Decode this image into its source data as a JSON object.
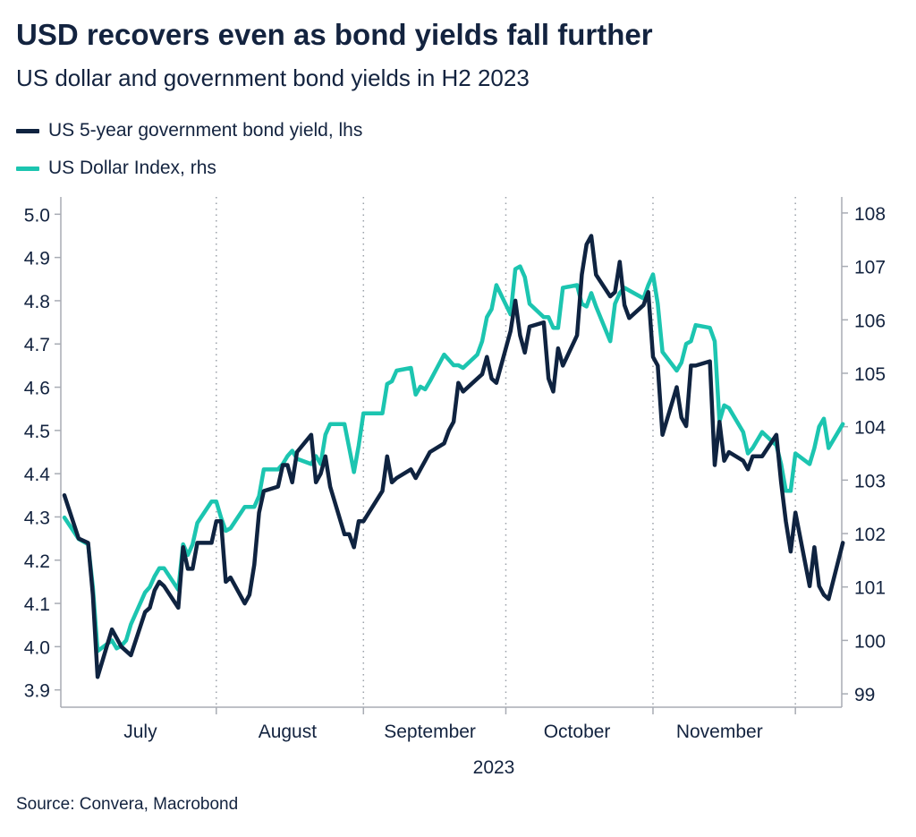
{
  "header": {
    "title": "USD recovers even as bond yields fall further",
    "subtitle": "US dollar and government bond yields in H2 2023"
  },
  "source": "Source: Convera, Macrobond",
  "colors": {
    "yield": "#0f2340",
    "dxy": "#1cc5b0",
    "axis": "#a8acb4",
    "grid": "#9aa0a8"
  },
  "chart_data": {
    "type": "line",
    "title": "USD recovers even as bond yields fall further",
    "subtitle": "US dollar and government bond yields in H2 2023",
    "x_axis": {
      "type": "date",
      "range": [
        "2023-06-30",
        "2023-12-07"
      ],
      "month_labels": [
        {
          "label": "July",
          "date": "2023-07-16"
        },
        {
          "label": "August",
          "date": "2023-08-16"
        },
        {
          "label": "September",
          "date": "2023-09-15"
        },
        {
          "label": "October",
          "date": "2023-10-16"
        },
        {
          "label": "November",
          "date": "2023-11-15"
        }
      ],
      "month_dividers": [
        "2023-08-01",
        "2023-09-01",
        "2023-10-01",
        "2023-11-01",
        "2023-12-01"
      ],
      "year_label": "2023",
      "grid": "dotted vertical at month boundaries"
    },
    "y_left": {
      "range": [
        3.86,
        5.04
      ],
      "ticks": [
        "3.9",
        "4.0",
        "4.1",
        "4.2",
        "4.3",
        "4.4",
        "4.5",
        "4.6",
        "4.7",
        "4.8",
        "4.9",
        "5.0"
      ]
    },
    "y_right": {
      "range": [
        98.75,
        108.3
      ],
      "ticks": [
        "99",
        "100",
        "101",
        "102",
        "103",
        "104",
        "105",
        "106",
        "107",
        "108"
      ]
    },
    "legend_placement": "top-left",
    "series": [
      {
        "name": "US 5-year government bond yield, lhs",
        "axis": "left",
        "color": "#0f2340",
        "points": [
          [
            "2023-06-30",
            4.35
          ],
          [
            "2023-07-03",
            4.25
          ],
          [
            "2023-07-05",
            4.24
          ],
          [
            "2023-07-06",
            4.12
          ],
          [
            "2023-07-07",
            3.93
          ],
          [
            "2023-07-10",
            4.04
          ],
          [
            "2023-07-11",
            4.02
          ],
          [
            "2023-07-12",
            4.0
          ],
          [
            "2023-07-13",
            3.99
          ],
          [
            "2023-07-14",
            3.98
          ],
          [
            "2023-07-17",
            4.08
          ],
          [
            "2023-07-18",
            4.09
          ],
          [
            "2023-07-19",
            4.13
          ],
          [
            "2023-07-20",
            4.15
          ],
          [
            "2023-07-21",
            4.14
          ],
          [
            "2023-07-24",
            4.09
          ],
          [
            "2023-07-25",
            4.23
          ],
          [
            "2023-07-26",
            4.18
          ],
          [
            "2023-07-27",
            4.18
          ],
          [
            "2023-07-28",
            4.24
          ],
          [
            "2023-07-31",
            4.24
          ],
          [
            "2023-08-01",
            4.29
          ],
          [
            "2023-08-02",
            4.29
          ],
          [
            "2023-08-03",
            4.15
          ],
          [
            "2023-08-04",
            4.16
          ],
          [
            "2023-08-07",
            4.1
          ],
          [
            "2023-08-08",
            4.12
          ],
          [
            "2023-08-09",
            4.19
          ],
          [
            "2023-08-10",
            4.31
          ],
          [
            "2023-08-11",
            4.36
          ],
          [
            "2023-08-14",
            4.37
          ],
          [
            "2023-08-15",
            4.42
          ],
          [
            "2023-08-16",
            4.42
          ],
          [
            "2023-08-17",
            4.38
          ],
          [
            "2023-08-18",
            4.45
          ],
          [
            "2023-08-21",
            4.49
          ],
          [
            "2023-08-22",
            4.38
          ],
          [
            "2023-08-23",
            4.4
          ],
          [
            "2023-08-24",
            4.44
          ],
          [
            "2023-08-25",
            4.37
          ],
          [
            "2023-08-28",
            4.26
          ],
          [
            "2023-08-29",
            4.26
          ],
          [
            "2023-08-30",
            4.23
          ],
          [
            "2023-08-31",
            4.29
          ],
          [
            "2023-09-01",
            4.29
          ],
          [
            "2023-09-05",
            4.36
          ],
          [
            "2023-09-06",
            4.44
          ],
          [
            "2023-09-07",
            4.38
          ],
          [
            "2023-09-08",
            4.39
          ],
          [
            "2023-09-11",
            4.41
          ],
          [
            "2023-09-12",
            4.39
          ],
          [
            "2023-09-13",
            4.41
          ],
          [
            "2023-09-14",
            4.43
          ],
          [
            "2023-09-15",
            4.45
          ],
          [
            "2023-09-18",
            4.47
          ],
          [
            "2023-09-19",
            4.5
          ],
          [
            "2023-09-20",
            4.52
          ],
          [
            "2023-09-21",
            4.61
          ],
          [
            "2023-09-22",
            4.59
          ],
          [
            "2023-09-25",
            4.62
          ],
          [
            "2023-09-26",
            4.63
          ],
          [
            "2023-09-27",
            4.67
          ],
          [
            "2023-09-28",
            4.62
          ],
          [
            "2023-09-29",
            4.61
          ],
          [
            "2023-10-02",
            4.73
          ],
          [
            "2023-10-03",
            4.8
          ],
          [
            "2023-10-04",
            4.72
          ],
          [
            "2023-10-05",
            4.68
          ],
          [
            "2023-10-06",
            4.74
          ],
          [
            "2023-10-09",
            4.75
          ],
          [
            "2023-10-10",
            4.62
          ],
          [
            "2023-10-11",
            4.59
          ],
          [
            "2023-10-12",
            4.69
          ],
          [
            "2023-10-13",
            4.65
          ],
          [
            "2023-10-16",
            4.72
          ],
          [
            "2023-10-17",
            4.86
          ],
          [
            "2023-10-18",
            4.93
          ],
          [
            "2023-10-19",
            4.95
          ],
          [
            "2023-10-20",
            4.86
          ],
          [
            "2023-10-23",
            4.81
          ],
          [
            "2023-10-24",
            4.82
          ],
          [
            "2023-10-25",
            4.89
          ],
          [
            "2023-10-26",
            4.79
          ],
          [
            "2023-10-27",
            4.76
          ],
          [
            "2023-10-30",
            4.79
          ],
          [
            "2023-10-31",
            4.82
          ],
          [
            "2023-11-01",
            4.67
          ],
          [
            "2023-11-02",
            4.65
          ],
          [
            "2023-11-03",
            4.49
          ],
          [
            "2023-11-06",
            4.6
          ],
          [
            "2023-11-07",
            4.53
          ],
          [
            "2023-11-08",
            4.51
          ],
          [
            "2023-11-09",
            4.65
          ],
          [
            "2023-11-10",
            4.65
          ],
          [
            "2023-11-13",
            4.66
          ],
          [
            "2023-11-14",
            4.42
          ],
          [
            "2023-11-15",
            4.52
          ],
          [
            "2023-11-16",
            4.43
          ],
          [
            "2023-11-17",
            4.45
          ],
          [
            "2023-11-20",
            4.43
          ],
          [
            "2023-11-21",
            4.41
          ],
          [
            "2023-11-22",
            4.44
          ],
          [
            "2023-11-24",
            4.44
          ],
          [
            "2023-11-27",
            4.49
          ],
          [
            "2023-11-28",
            4.38
          ],
          [
            "2023-11-29",
            4.29
          ],
          [
            "2023-11-30",
            4.22
          ],
          [
            "2023-12-01",
            4.31
          ],
          [
            "2023-12-04",
            4.14
          ],
          [
            "2023-12-05",
            4.23
          ],
          [
            "2023-12-06",
            4.14
          ],
          [
            "2023-12-07",
            4.12
          ],
          [
            "2023-12-08",
            4.11
          ],
          [
            "2023-12-11",
            4.24
          ]
        ]
      },
      {
        "name": "US Dollar Index, rhs",
        "axis": "right",
        "color": "#1cc5b0",
        "points": [
          [
            "2023-06-30",
            102.3
          ],
          [
            "2023-07-03",
            101.9
          ],
          [
            "2023-07-05",
            101.8
          ],
          [
            "2023-07-06",
            101.0
          ],
          [
            "2023-07-07",
            99.8
          ],
          [
            "2023-07-10",
            100.0
          ],
          [
            "2023-07-11",
            99.85
          ],
          [
            "2023-07-12",
            99.9
          ],
          [
            "2023-07-13",
            100.0
          ],
          [
            "2023-07-14",
            100.3
          ],
          [
            "2023-07-17",
            100.9
          ],
          [
            "2023-07-18",
            101.0
          ],
          [
            "2023-07-19",
            101.2
          ],
          [
            "2023-07-20",
            101.35
          ],
          [
            "2023-07-21",
            101.35
          ],
          [
            "2023-07-24",
            100.95
          ],
          [
            "2023-07-25",
            101.8
          ],
          [
            "2023-07-26",
            101.6
          ],
          [
            "2023-07-27",
            101.8
          ],
          [
            "2023-07-28",
            102.2
          ],
          [
            "2023-07-31",
            102.6
          ],
          [
            "2023-08-01",
            102.6
          ],
          [
            "2023-08-02",
            102.3
          ],
          [
            "2023-08-03",
            102.05
          ],
          [
            "2023-08-04",
            102.1
          ],
          [
            "2023-08-07",
            102.5
          ],
          [
            "2023-08-08",
            102.5
          ],
          [
            "2023-08-09",
            102.5
          ],
          [
            "2023-08-10",
            102.7
          ],
          [
            "2023-08-11",
            103.2
          ],
          [
            "2023-08-14",
            103.2
          ],
          [
            "2023-08-15",
            103.3
          ],
          [
            "2023-08-16",
            103.45
          ],
          [
            "2023-08-17",
            103.55
          ],
          [
            "2023-08-18",
            103.4
          ],
          [
            "2023-08-21",
            103.3
          ],
          [
            "2023-08-22",
            103.45
          ],
          [
            "2023-08-23",
            103.3
          ],
          [
            "2023-08-24",
            103.85
          ],
          [
            "2023-08-25",
            104.05
          ],
          [
            "2023-08-28",
            104.05
          ],
          [
            "2023-08-29",
            103.6
          ],
          [
            "2023-08-30",
            103.15
          ],
          [
            "2023-08-31",
            103.65
          ],
          [
            "2023-09-01",
            104.25
          ],
          [
            "2023-09-05",
            104.25
          ],
          [
            "2023-09-06",
            104.8
          ],
          [
            "2023-09-07",
            104.85
          ],
          [
            "2023-09-08",
            105.05
          ],
          [
            "2023-09-11",
            105.1
          ],
          [
            "2023-09-12",
            104.6
          ],
          [
            "2023-09-13",
            104.75
          ],
          [
            "2023-09-14",
            104.7
          ],
          [
            "2023-09-15",
            104.85
          ],
          [
            "2023-09-18",
            105.35
          ],
          [
            "2023-09-19",
            105.25
          ],
          [
            "2023-09-20",
            105.15
          ],
          [
            "2023-09-21",
            105.15
          ],
          [
            "2023-09-22",
            105.1
          ],
          [
            "2023-09-25",
            105.35
          ],
          [
            "2023-09-26",
            105.6
          ],
          [
            "2023-09-27",
            106.05
          ],
          [
            "2023-09-28",
            106.2
          ],
          [
            "2023-09-29",
            106.65
          ],
          [
            "2023-10-02",
            106.1
          ],
          [
            "2023-10-03",
            106.95
          ],
          [
            "2023-10-04",
            107.0
          ],
          [
            "2023-10-05",
            106.8
          ],
          [
            "2023-10-06",
            106.3
          ],
          [
            "2023-10-09",
            106.05
          ],
          [
            "2023-10-10",
            106.05
          ],
          [
            "2023-10-11",
            105.85
          ],
          [
            "2023-10-12",
            105.85
          ],
          [
            "2023-10-13",
            106.6
          ],
          [
            "2023-10-16",
            106.65
          ],
          [
            "2023-10-17",
            106.3
          ],
          [
            "2023-10-18",
            106.25
          ],
          [
            "2023-10-19",
            106.5
          ],
          [
            "2023-10-20",
            106.25
          ],
          [
            "2023-10-23",
            105.6
          ],
          [
            "2023-10-24",
            106.3
          ],
          [
            "2023-10-25",
            106.5
          ],
          [
            "2023-10-26",
            106.6
          ],
          [
            "2023-10-27",
            106.55
          ],
          [
            "2023-10-30",
            106.4
          ],
          [
            "2023-10-31",
            106.65
          ],
          [
            "2023-11-01",
            106.85
          ],
          [
            "2023-11-02",
            106.3
          ],
          [
            "2023-11-03",
            105.4
          ],
          [
            "2023-11-06",
            105.05
          ],
          [
            "2023-11-07",
            105.2
          ],
          [
            "2023-11-08",
            105.55
          ],
          [
            "2023-11-09",
            105.6
          ],
          [
            "2023-11-10",
            105.9
          ],
          [
            "2023-11-13",
            105.85
          ],
          [
            "2023-11-14",
            105.6
          ],
          [
            "2023-11-15",
            104.1
          ],
          [
            "2023-11-16",
            104.4
          ],
          [
            "2023-11-17",
            104.35
          ],
          [
            "2023-11-20",
            103.9
          ],
          [
            "2023-11-21",
            103.5
          ],
          [
            "2023-11-22",
            103.6
          ],
          [
            "2023-11-24",
            103.9
          ],
          [
            "2023-11-27",
            103.65
          ],
          [
            "2023-11-28",
            103.3
          ],
          [
            "2023-11-29",
            102.8
          ],
          [
            "2023-11-30",
            102.8
          ],
          [
            "2023-12-01",
            103.5
          ],
          [
            "2023-12-04",
            103.3
          ],
          [
            "2023-12-05",
            103.6
          ],
          [
            "2023-12-06",
            104.0
          ],
          [
            "2023-12-07",
            104.15
          ],
          [
            "2023-12-08",
            103.6
          ],
          [
            "2023-12-11",
            104.05
          ]
        ]
      }
    ]
  }
}
